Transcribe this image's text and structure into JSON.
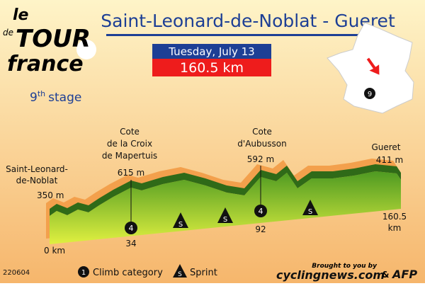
{
  "logo": {
    "le": "le",
    "tour": "TOUR",
    "de": "de",
    "france": "france"
  },
  "stage": {
    "number": "9",
    "suffix": "th",
    "label": "stage"
  },
  "title": "Saint-Leonard-de-Noblat - Gueret",
  "date": "Tuesday, July 13",
  "distance": "160.5 km",
  "map_marker": "9",
  "start": {
    "name_lines": [
      "Saint-Leonard-",
      "de-Noblat"
    ],
    "altitude": "350 m",
    "km": "0 km"
  },
  "finish": {
    "name": "Gueret",
    "altitude": "411 m",
    "km_lines": [
      "160.5",
      "km"
    ]
  },
  "climbs": [
    {
      "name_lines": [
        "Cote",
        "de la Croix",
        "de Mapertuis"
      ],
      "altitude": "615 m",
      "category": "4",
      "km": "34"
    },
    {
      "name_lines": [
        "Cote",
        "d'Aubusson"
      ],
      "altitude": "592 m",
      "category": "4",
      "km": "92"
    }
  ],
  "sprints": [
    "S",
    "S",
    "S"
  ],
  "legend": {
    "climb_icon": "1",
    "climb": "Climb category",
    "sprint_icon": "S",
    "sprint": "Sprint"
  },
  "code": "220604",
  "credit": {
    "prefix": "Brought to you by",
    "site": "cyclingnews.com",
    "amp": "&",
    "agency": "AFP"
  }
}
